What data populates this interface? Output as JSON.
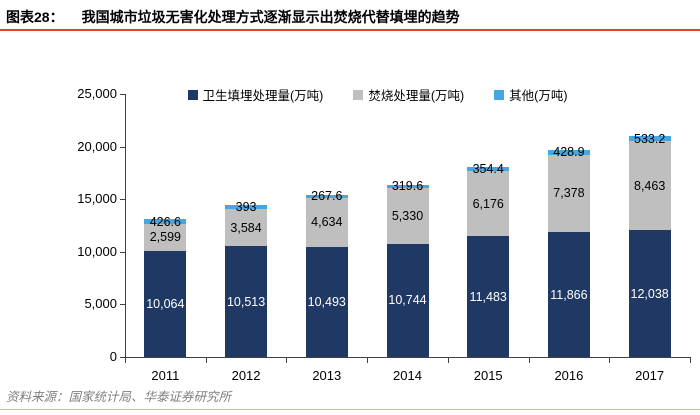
{
  "header": {
    "figure_label": "图表28：",
    "title": "我国城市垃圾无害化处理方式逐渐显示出焚烧代替填埋的趋势"
  },
  "chart_data": {
    "type": "bar",
    "stacked": true,
    "title": "我国城市垃圾无害化处理方式逐渐显示出焚烧代替填埋的趋势",
    "xlabel": "",
    "ylabel": "",
    "categories": [
      "2011",
      "2012",
      "2013",
      "2014",
      "2015",
      "2016",
      "2017"
    ],
    "series": [
      {
        "name": "卫生填埋处理量(万吨)",
        "color": "#1f3864",
        "label_color": "#ffffff",
        "values": [
          10064,
          10513,
          10493,
          10744,
          11483,
          11866,
          12038
        ],
        "labels": [
          "10,064",
          "10,513",
          "10,493",
          "10,744",
          "11,483",
          "11,866",
          "12,038"
        ]
      },
      {
        "name": "焚烧处理量(万吨)",
        "color": "#bfbfbf",
        "label_color": "#000000",
        "values": [
          2599,
          3584,
          4634,
          5330,
          6176,
          7378,
          8463
        ],
        "labels": [
          "2,599",
          "3,584",
          "4,634",
          "5,330",
          "6,176",
          "7,378",
          "8,463"
        ]
      },
      {
        "name": "其他(万吨)",
        "color": "#45a6e2",
        "label_color": "#000000",
        "values": [
          426.6,
          393,
          267.6,
          319.6,
          354.4,
          428.9,
          533.2
        ],
        "labels": [
          "426.6",
          "393",
          "267.6",
          "319.6",
          "354.4",
          "428.9",
          "533.2"
        ]
      }
    ],
    "ylim": [
      0,
      25000
    ],
    "ytick_step": 5000,
    "ytick_labels": [
      "0",
      "5,000",
      "10,000",
      "15,000",
      "20,000",
      "25,000"
    ],
    "grid": false,
    "legend_position": "top-center"
  },
  "footer": {
    "source": "资料来源：国家统计局、华泰证券研究所"
  },
  "colors": {
    "title_rule": "#e8402c",
    "bottom_rule": "#f2aba1",
    "axis": "#404040"
  }
}
